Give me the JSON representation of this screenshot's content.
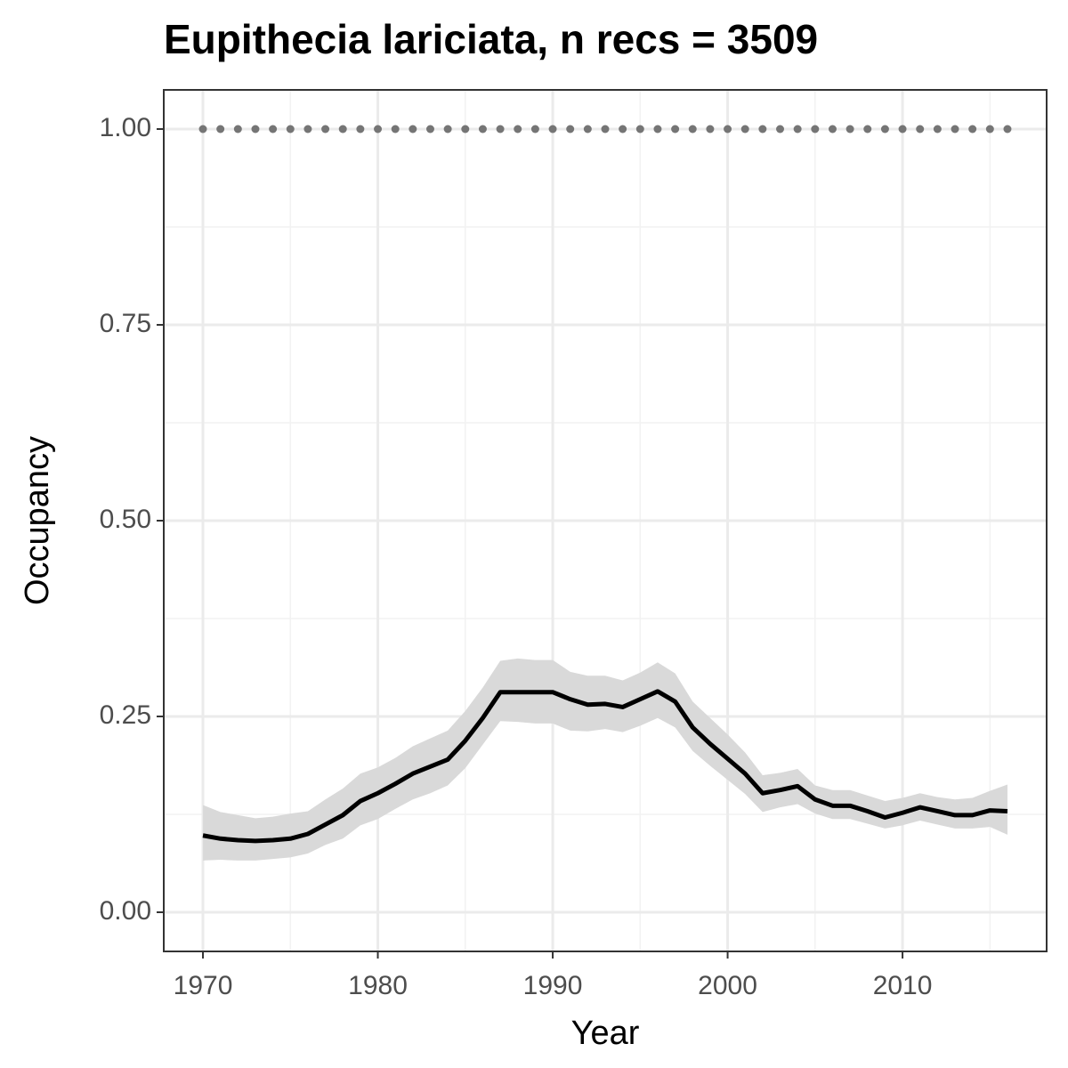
{
  "chart_data": {
    "type": "line",
    "title": "Eupithecia lariciata, n recs = 3509",
    "x_label": "Year",
    "y_label": "Occupancy",
    "x": [
      1970,
      1971,
      1972,
      1973,
      1974,
      1975,
      1976,
      1977,
      1978,
      1979,
      1980,
      1981,
      1982,
      1983,
      1984,
      1985,
      1986,
      1987,
      1988,
      1989,
      1990,
      1991,
      1992,
      1993,
      1994,
      1995,
      1996,
      1997,
      1998,
      1999,
      2000,
      2001,
      2002,
      2003,
      2004,
      2005,
      2006,
      2007,
      2008,
      2009,
      2010,
      2011,
      2012,
      2013,
      2014,
      2015,
      2016
    ],
    "values": [
      0.098,
      0.094,
      0.092,
      0.091,
      0.092,
      0.094,
      0.1,
      0.112,
      0.124,
      0.142,
      0.152,
      0.164,
      0.177,
      0.186,
      0.195,
      0.219,
      0.248,
      0.281,
      0.281,
      0.281,
      0.281,
      0.272,
      0.265,
      0.266,
      0.262,
      0.272,
      0.282,
      0.269,
      0.236,
      0.215,
      0.196,
      0.177,
      0.152,
      0.156,
      0.161,
      0.144,
      0.136,
      0.136,
      0.129,
      0.121,
      0.127,
      0.134,
      0.129,
      0.124,
      0.124,
      0.13,
      0.129
    ],
    "upper": [
      0.137,
      0.128,
      0.124,
      0.12,
      0.122,
      0.126,
      0.129,
      0.144,
      0.158,
      0.177,
      0.185,
      0.197,
      0.212,
      0.222,
      0.232,
      0.257,
      0.287,
      0.321,
      0.324,
      0.322,
      0.322,
      0.307,
      0.302,
      0.302,
      0.296,
      0.306,
      0.319,
      0.305,
      0.269,
      0.248,
      0.227,
      0.204,
      0.175,
      0.178,
      0.183,
      0.162,
      0.156,
      0.156,
      0.149,
      0.142,
      0.146,
      0.152,
      0.147,
      0.144,
      0.146,
      0.155,
      0.163
    ],
    "lower": [
      0.066,
      0.067,
      0.066,
      0.066,
      0.068,
      0.07,
      0.075,
      0.086,
      0.094,
      0.111,
      0.119,
      0.132,
      0.144,
      0.152,
      0.162,
      0.184,
      0.214,
      0.244,
      0.243,
      0.241,
      0.241,
      0.232,
      0.231,
      0.234,
      0.23,
      0.238,
      0.248,
      0.236,
      0.206,
      0.187,
      0.169,
      0.151,
      0.128,
      0.134,
      0.138,
      0.126,
      0.119,
      0.119,
      0.113,
      0.107,
      0.111,
      0.117,
      0.112,
      0.107,
      0.107,
      0.109,
      0.099
    ],
    "reference_values": [
      1,
      1,
      1,
      1,
      1,
      1,
      1,
      1,
      1,
      1,
      1,
      1,
      1,
      1,
      1,
      1,
      1,
      1,
      1,
      1,
      1,
      1,
      1,
      1,
      1,
      1,
      1,
      1,
      1,
      1,
      1,
      1,
      1,
      1,
      1,
      1,
      1,
      1,
      1,
      1,
      1,
      1,
      1,
      1,
      1,
      1,
      1
    ],
    "color": "#000000",
    "ribbon_color": "#d9d9d9",
    "reference_color": "#757575",
    "xlim": [
      1967.76,
      2018.24
    ],
    "ylim": [
      -0.05,
      1.05
    ],
    "xticks": [
      1970,
      1980,
      1990,
      2000,
      2010
    ],
    "yticks": [
      {
        "value": 0,
        "label": "0.00"
      },
      {
        "value": 0.25,
        "label": "0.25"
      },
      {
        "value": 0.5,
        "label": "0.50"
      },
      {
        "value": 0.75,
        "label": "0.75"
      },
      {
        "value": 1,
        "label": "1.00"
      }
    ],
    "xminor": [
      1975,
      1985,
      1995,
      2005,
      2015
    ],
    "yminor": [
      0.125,
      0.375,
      0.625,
      0.875
    ],
    "grid": true
  }
}
